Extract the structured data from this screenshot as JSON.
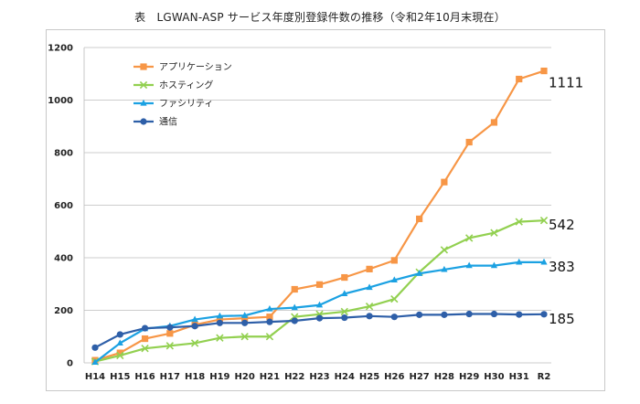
{
  "chart_data": {
    "type": "line",
    "title": "表　LGWAN-ASP サービス年度別登録件数の推移（令和2年10月末現在）",
    "categories": [
      "H14",
      "H15",
      "H16",
      "H17",
      "H18",
      "H19",
      "H20",
      "H21",
      "H22",
      "H23",
      "H24",
      "H25",
      "H26",
      "H27",
      "H28",
      "H29",
      "H30",
      "H31",
      "R2"
    ],
    "ylim": [
      0,
      1200
    ],
    "yticks": [
      0,
      200,
      400,
      600,
      800,
      1000,
      1200
    ],
    "grid": true,
    "legend_position": "top-left",
    "series": [
      {
        "name": "アプリケーション",
        "color": "#f79646",
        "marker": "square",
        "values": [
          10,
          38,
          92,
          112,
          145,
          165,
          170,
          175,
          280,
          298,
          325,
          357,
          390,
          548,
          688,
          840,
          915,
          1080,
          1111
        ],
        "end_label": "1111"
      },
      {
        "name": "ホスティング",
        "color": "#92d050",
        "marker": "x",
        "values": [
          5,
          28,
          55,
          65,
          75,
          95,
          100,
          100,
          175,
          185,
          195,
          215,
          243,
          345,
          430,
          475,
          495,
          537,
          542
        ],
        "end_label": "542"
      },
      {
        "name": "ファシリティ",
        "color": "#1ba1e2",
        "marker": "triangle",
        "values": [
          2,
          75,
          130,
          140,
          165,
          178,
          180,
          205,
          210,
          220,
          263,
          287,
          315,
          340,
          355,
          370,
          370,
          383,
          383
        ],
        "end_label": "383"
      },
      {
        "name": "通信",
        "color": "#2e5fa8",
        "marker": "circle",
        "values": [
          58,
          108,
          132,
          135,
          140,
          152,
          152,
          156,
          160,
          170,
          172,
          178,
          175,
          183,
          183,
          186,
          186,
          184,
          185
        ],
        "end_label": "185"
      }
    ]
  }
}
